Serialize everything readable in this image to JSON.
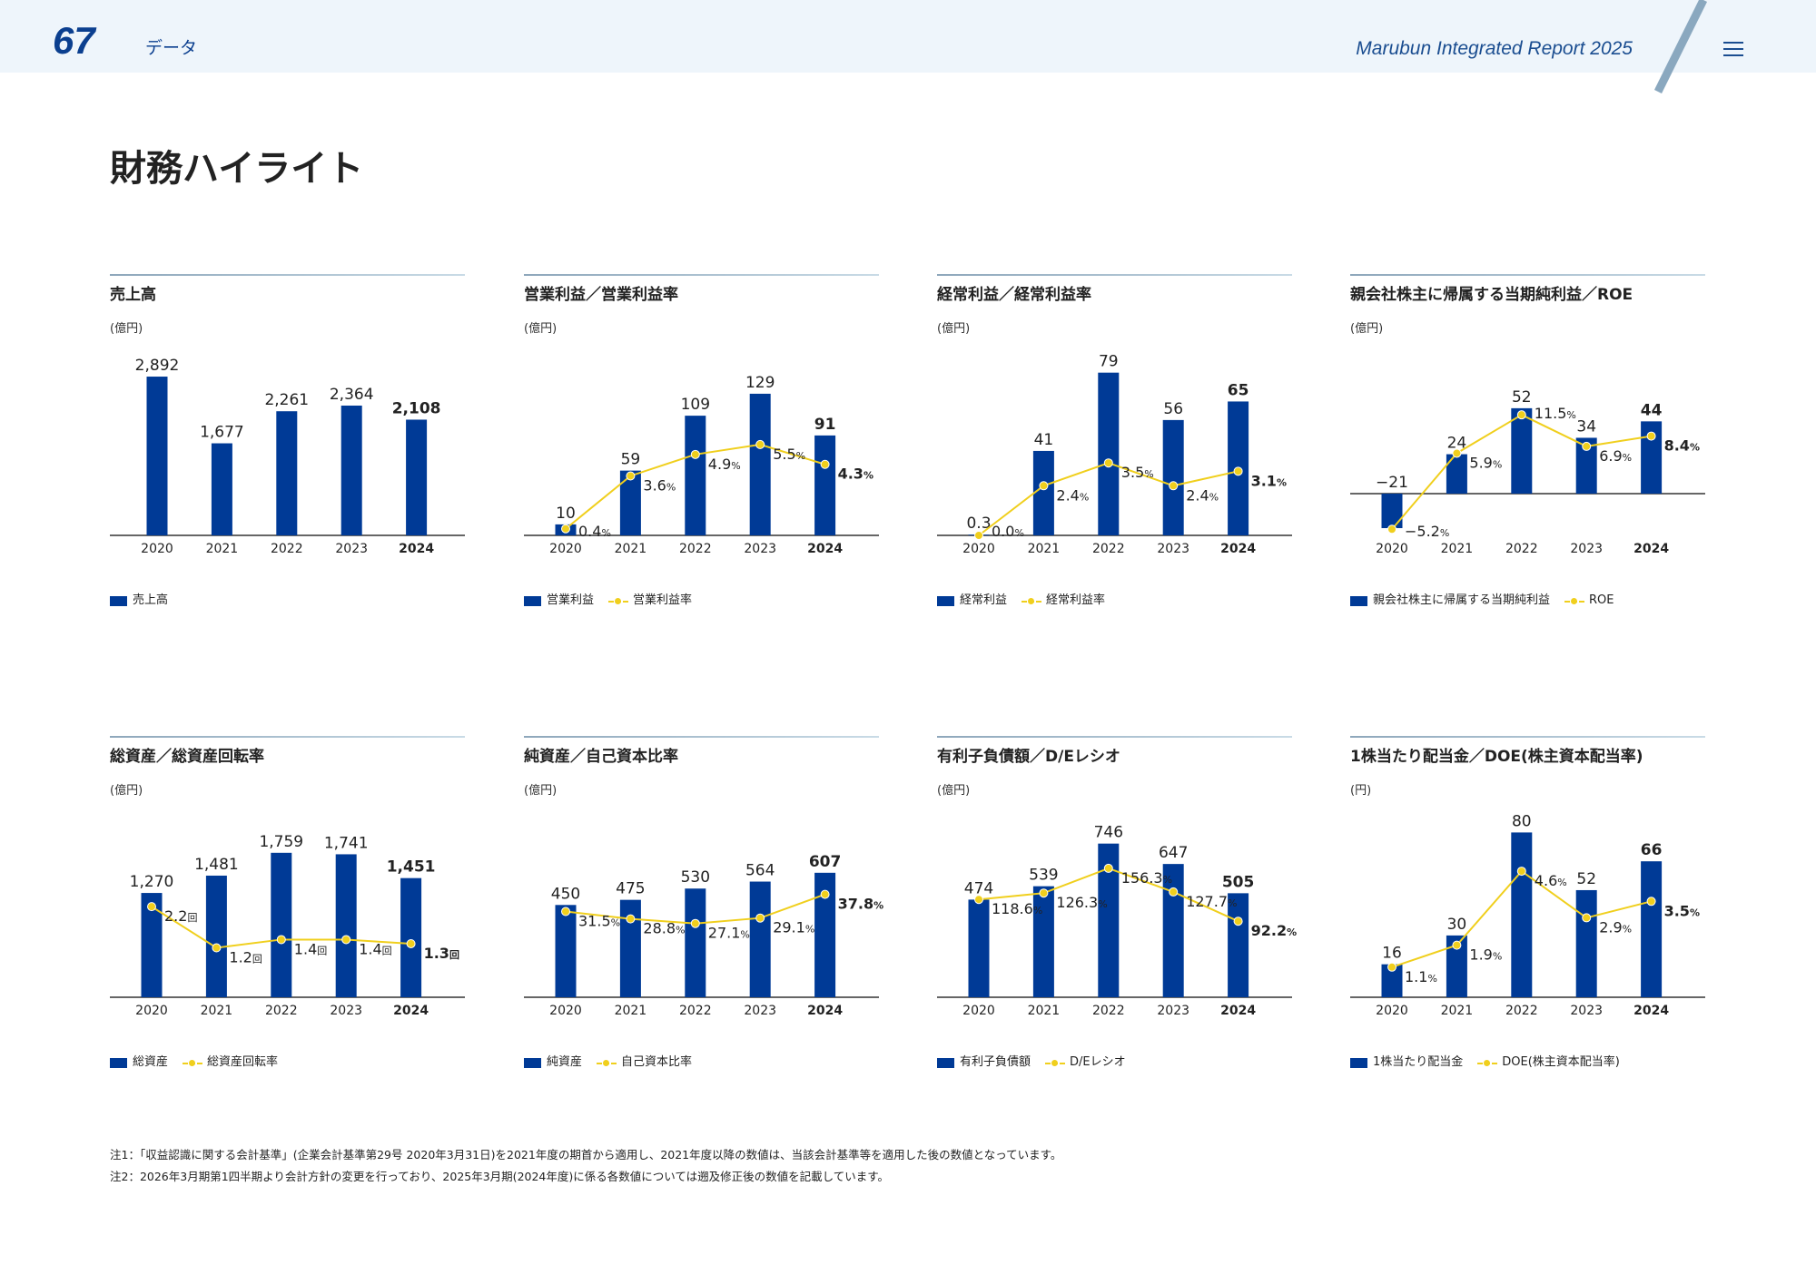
{
  "header": {
    "page_number": "67",
    "section": "データ",
    "report_title": "Marubun Integrated Report 2025",
    "menu_icon": "hamburger-icon"
  },
  "page_title": "財務ハイライト",
  "colors": {
    "bar": "#003a96",
    "line": "#f0cf1d",
    "header_bg": "#eef5fb",
    "accent": "#0b3f8f"
  },
  "chart_data": [
    {
      "type": "bar",
      "title": "売上高",
      "unit": "(億円)",
      "categories": [
        "2020",
        "2021",
        "2022",
        "2023",
        "2024"
      ],
      "bar_series": {
        "name": "売上高",
        "values": [
          2892,
          1677,
          2261,
          2364,
          2108
        ],
        "labels": [
          "2,892",
          "1,677",
          "2,261",
          "2,364",
          "2,108"
        ]
      }
    },
    {
      "type": "bar+line",
      "title": "営業利益／営業利益率",
      "unit": "(億円)",
      "categories": [
        "2020",
        "2021",
        "2022",
        "2023",
        "2024"
      ],
      "bar_series": {
        "name": "営業利益",
        "values": [
          10,
          59,
          109,
          129,
          91
        ],
        "labels": [
          "10",
          "59",
          "109",
          "129",
          "91"
        ]
      },
      "line_series": {
        "name": "営業利益率",
        "values": [
          0.4,
          3.6,
          4.9,
          5.5,
          4.3
        ],
        "labels": [
          "0.4",
          "3.6",
          "4.9",
          "5.5",
          "4.3"
        ],
        "suffix": "%"
      }
    },
    {
      "type": "bar+line",
      "title": "経常利益／経常利益率",
      "unit": "(億円)",
      "categories": [
        "2020",
        "2021",
        "2022",
        "2023",
        "2024"
      ],
      "bar_series": {
        "name": "経常利益",
        "values": [
          0.3,
          41,
          79,
          56,
          65
        ],
        "labels": [
          "0.3",
          "41",
          "79",
          "56",
          "65"
        ]
      },
      "line_series": {
        "name": "経常利益率",
        "values": [
          0.0,
          2.4,
          3.5,
          2.4,
          3.1
        ],
        "labels": [
          "0.0",
          "2.4",
          "3.5",
          "2.4",
          "3.1"
        ],
        "suffix": "%"
      }
    },
    {
      "type": "bar+line",
      "title": "親会社株主に帰属する当期純利益／ROE",
      "unit": "(億円)",
      "categories": [
        "2020",
        "2021",
        "2022",
        "2023",
        "2024"
      ],
      "bar_series": {
        "name": "親会社株主に帰属する当期純利益",
        "values": [
          -21,
          24,
          52,
          34,
          44
        ],
        "labels": [
          "−21",
          "24",
          "52",
          "34",
          "44"
        ]
      },
      "line_series": {
        "name": "ROE",
        "values": [
          -5.2,
          5.9,
          11.5,
          6.9,
          8.4
        ],
        "labels": [
          "−5.2",
          "5.9",
          "11.5",
          "6.9",
          "8.4"
        ],
        "suffix": "%"
      }
    },
    {
      "type": "bar+line",
      "title": "総資産／総資産回転率",
      "unit": "(億円)",
      "categories": [
        "2020",
        "2021",
        "2022",
        "2023",
        "2024"
      ],
      "bar_series": {
        "name": "総資産",
        "values": [
          1270,
          1481,
          1759,
          1741,
          1451
        ],
        "labels": [
          "1,270",
          "1,481",
          "1,759",
          "1,741",
          "1,451"
        ]
      },
      "line_series": {
        "name": "総資産回転率",
        "values": [
          2.2,
          1.2,
          1.4,
          1.4,
          1.3
        ],
        "labels": [
          "2.2",
          "1.2",
          "1.4",
          "1.4",
          "1.3"
        ],
        "suffix": "回"
      }
    },
    {
      "type": "bar+line",
      "title": "純資産／自己資本比率",
      "unit": "(億円)",
      "categories": [
        "2020",
        "2021",
        "2022",
        "2023",
        "2024"
      ],
      "bar_series": {
        "name": "純資産",
        "values": [
          450,
          475,
          530,
          564,
          607
        ],
        "labels": [
          "450",
          "475",
          "530",
          "564",
          "607"
        ]
      },
      "line_series": {
        "name": "自己資本比率",
        "values": [
          31.5,
          28.8,
          27.1,
          29.1,
          37.8
        ],
        "labels": [
          "31.5",
          "28.8",
          "27.1",
          "29.1",
          "37.8"
        ],
        "suffix": "%"
      }
    },
    {
      "type": "bar+line",
      "title": "有利子負債額／D/Eレシオ",
      "unit": "(億円)",
      "categories": [
        "2020",
        "2021",
        "2022",
        "2023",
        "2024"
      ],
      "bar_series": {
        "name": "有利子負債額",
        "values": [
          474,
          539,
          746,
          647,
          505
        ],
        "labels": [
          "474",
          "539",
          "746",
          "647",
          "505"
        ]
      },
      "line_series": {
        "name": "D/Eレシオ",
        "values": [
          118.6,
          126.3,
          156.3,
          127.7,
          92.2
        ],
        "labels": [
          "118.6",
          "126.3",
          "156.3",
          "127.7",
          "92.2"
        ],
        "suffix": "%"
      }
    },
    {
      "type": "bar+line",
      "title": "1株当たり配当金／DOE(株主資本配当率)",
      "unit": "(円)",
      "categories": [
        "2020",
        "2021",
        "2022",
        "2023",
        "2024"
      ],
      "bar_series": {
        "name": "1株当たり配当金",
        "values": [
          16,
          30,
          80,
          52,
          66
        ],
        "labels": [
          "16",
          "30",
          "80",
          "52",
          "66"
        ]
      },
      "line_series": {
        "name": "DOE(株主資本配当率)",
        "values": [
          1.1,
          1.9,
          4.6,
          2.9,
          3.5
        ],
        "labels": [
          "1.1",
          "1.9",
          "4.6",
          "2.9",
          "3.5"
        ],
        "suffix": "%"
      }
    }
  ],
  "notes": [
    "注1：「収益認識に関する会計基準」(企業会計基準第29号 2020年3月31日)を2021年度の期首から適用し、2021年度以降の数値は、当該会計基準等を適用した後の数値となっています。",
    "注2：2026年3月期第1四半期より会計方針の変更を行っており、2025年3月期(2024年度)に係る各数値については遡及修正後の数値を記載しています。"
  ]
}
